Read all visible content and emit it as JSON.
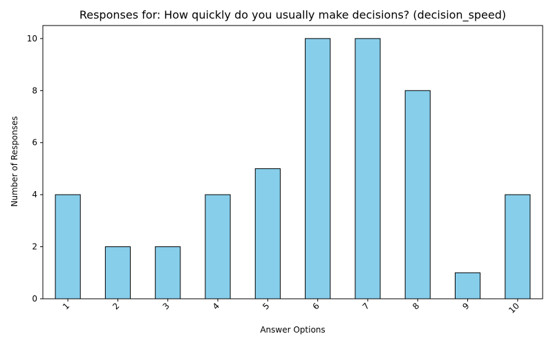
{
  "chart_data": {
    "type": "bar",
    "title": "Responses for: How quickly do you usually make decisions? (decision_speed)",
    "xlabel": "Answer Options",
    "ylabel": "Number of Responses",
    "categories": [
      "1",
      "2",
      "3",
      "4",
      "5",
      "6",
      "7",
      "8",
      "9",
      "10"
    ],
    "values": [
      4,
      2,
      2,
      4,
      5,
      10,
      10,
      8,
      1,
      4
    ],
    "ylim": [
      0,
      10.5
    ],
    "yticks": [
      0,
      2,
      4,
      6,
      8,
      10
    ],
    "grid": false,
    "legend": "none",
    "x_tick_rotation": 45,
    "bar_color": "#87CEEB",
    "bar_edge_color": "#000000"
  }
}
